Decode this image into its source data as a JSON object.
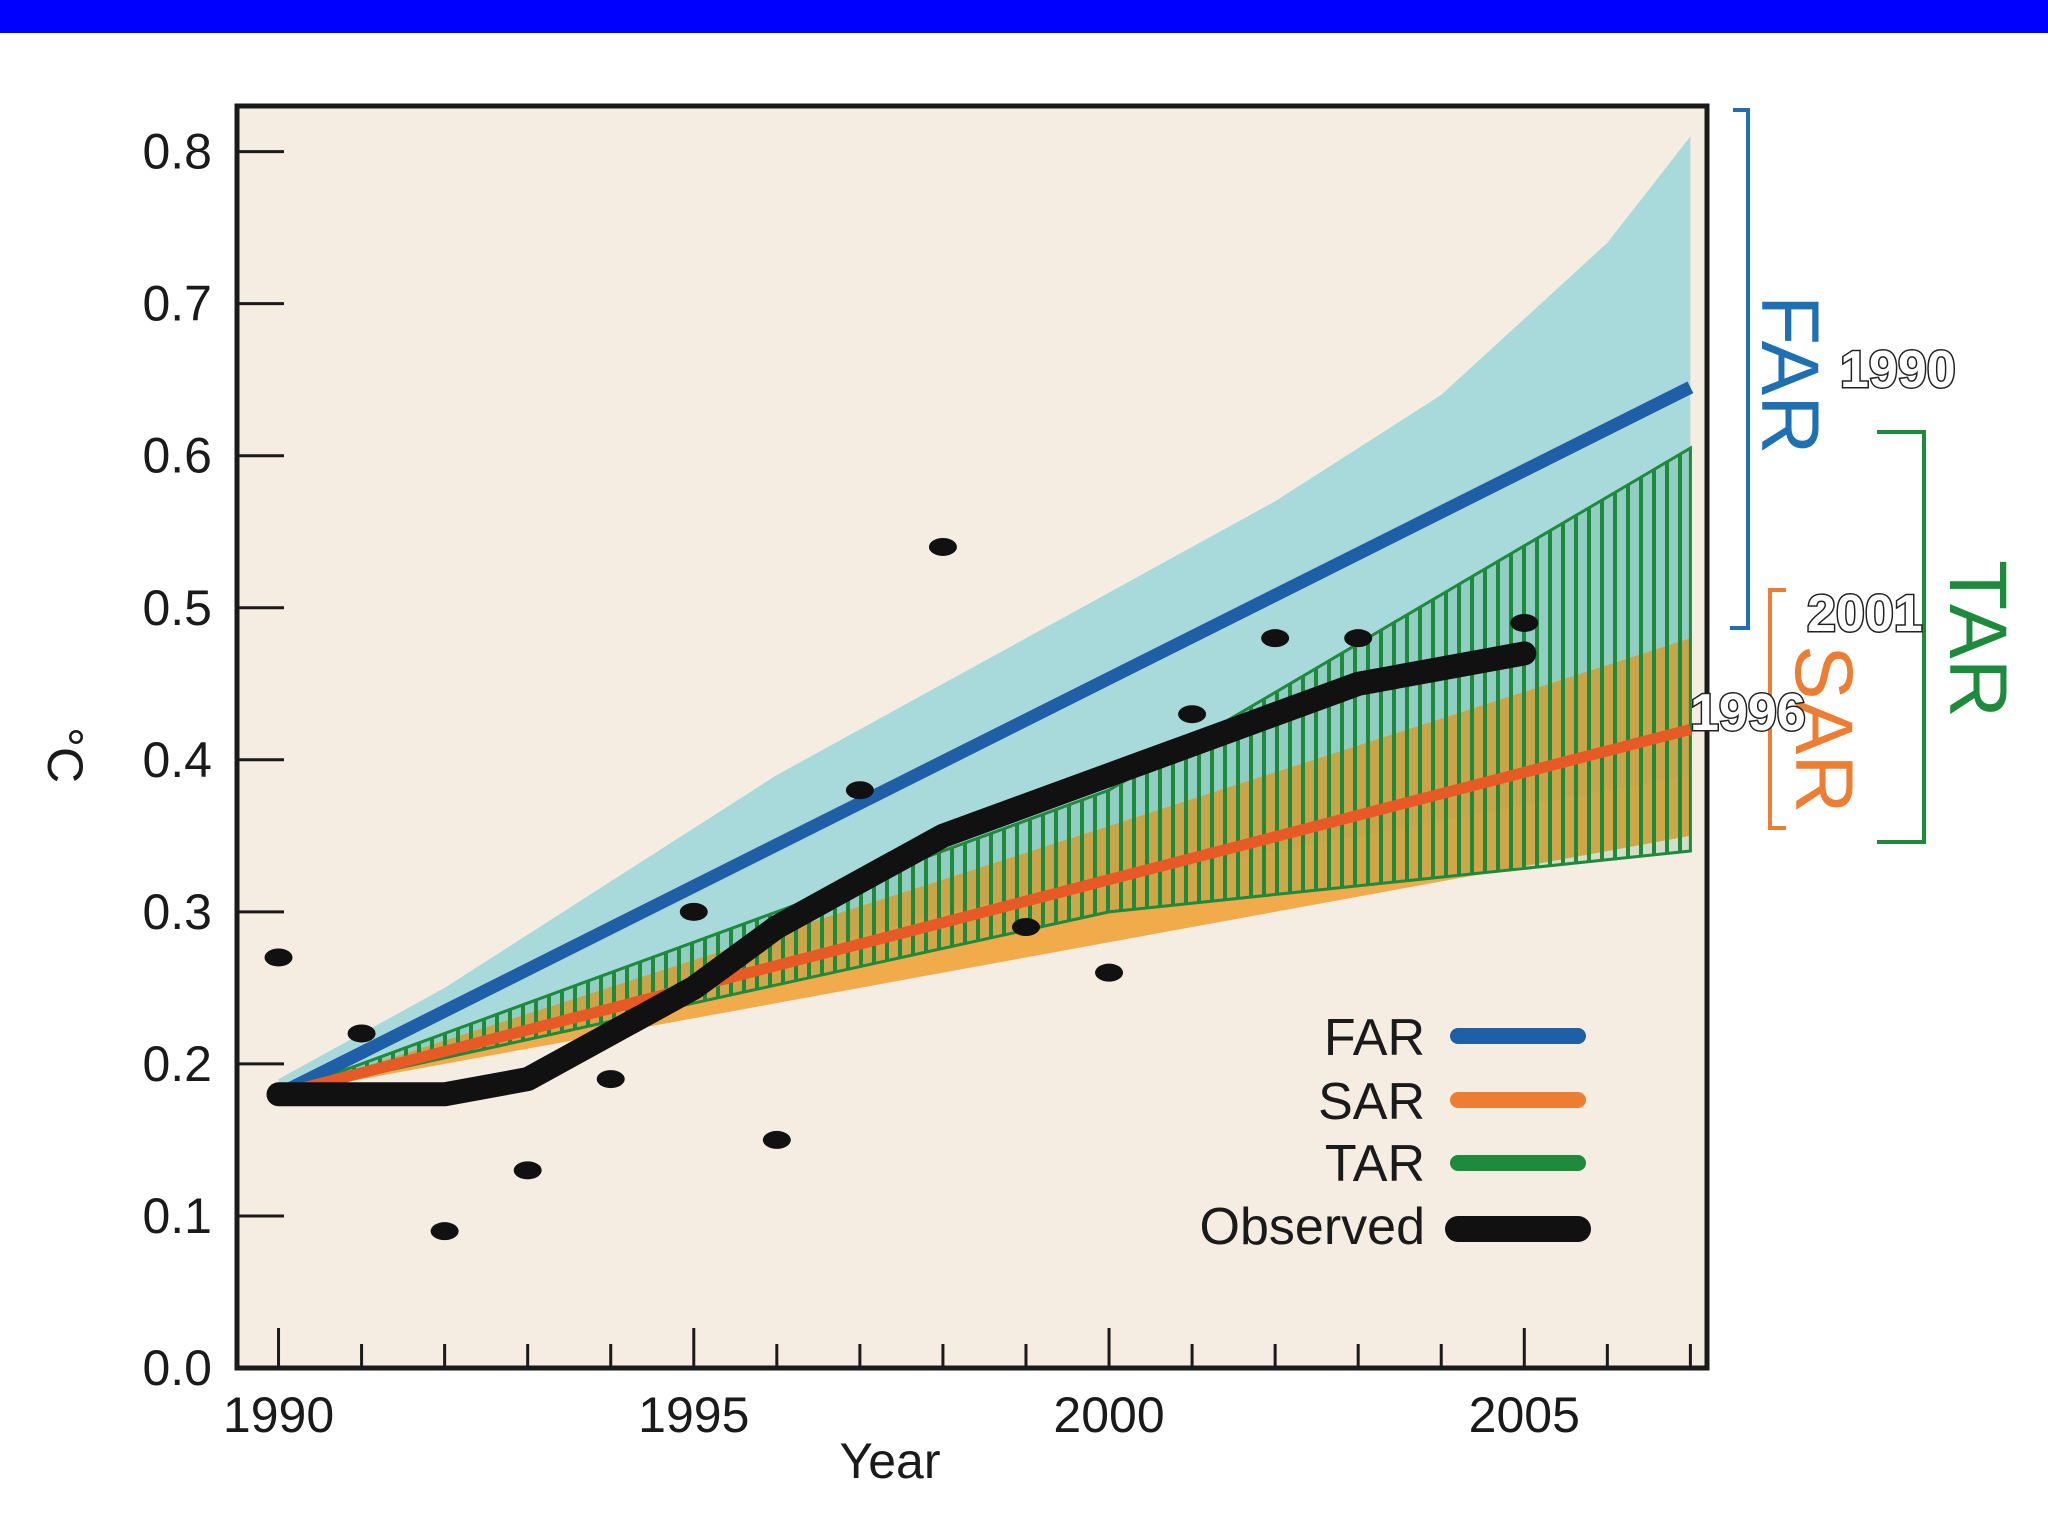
{
  "colors": {
    "topbar": "#0000ff",
    "plot_bg": "#f6ede2",
    "far": "#1f5fa8",
    "far_band": "#a8dadc",
    "sar": "#ec7d32",
    "sar_band": "#f2a33a",
    "tar": "#1e8a3c",
    "observed": "#111111"
  },
  "chart_data": {
    "type": "line",
    "xlabel": "Year",
    "ylabel": "°C",
    "xlim": [
      1989.5,
      2007.2
    ],
    "ylim": [
      0.0,
      0.83
    ],
    "x_ticks": [
      1990,
      1995,
      2000,
      2005
    ],
    "x_tick_labels": [
      "1990",
      "1995",
      "2000",
      "2005"
    ],
    "x_minor_ticks": [
      1990,
      1991,
      1992,
      1993,
      1994,
      1995,
      1996,
      1997,
      1998,
      1999,
      2000,
      2001,
      2002,
      2003,
      2004,
      2005,
      2006,
      2007
    ],
    "y_ticks": [
      0.0,
      0.1,
      0.2,
      0.3,
      0.4,
      0.5,
      0.6,
      0.7,
      0.8
    ],
    "y_tick_labels": [
      "0.0",
      "0.1",
      "0.2",
      "0.3",
      "0.4",
      "0.5",
      "0.6",
      "0.7",
      "0.8"
    ],
    "grid": false,
    "legend_position": "bottom-right",
    "series": [
      {
        "name": "FAR",
        "x": [
          1990,
          2007
        ],
        "values": [
          0.18,
          0.645
        ],
        "band_x": [
          1990,
          1992,
          1994,
          1996,
          1998,
          2000,
          2002,
          2004,
          2006,
          2007
        ],
        "band_upper": [
          0.19,
          0.25,
          0.32,
          0.39,
          0.45,
          0.51,
          0.57,
          0.64,
          0.74,
          0.81
        ],
        "band_lower": [
          0.18,
          0.205,
          0.24,
          0.27,
          0.3,
          0.32,
          0.34,
          0.36,
          0.38,
          0.39
        ]
      },
      {
        "name": "SAR",
        "x": [
          1990,
          2007
        ],
        "values": [
          0.18,
          0.42
        ],
        "band_x": [
          1990,
          2007
        ],
        "band_upper": [
          0.18,
          0.48
        ],
        "band_lower": [
          0.18,
          0.35
        ]
      },
      {
        "name": "TAR",
        "x": [
          1990,
          2007
        ],
        "values": [
          0.18,
          0.42
        ],
        "band_x": [
          1990,
          2000,
          2007
        ],
        "band_upper": [
          0.18,
          0.38,
          0.605
        ],
        "band_lower": [
          0.18,
          0.3,
          0.34
        ]
      },
      {
        "name": "Observed",
        "x": [
          1990,
          1992,
          1993,
          1994,
          1995,
          1996,
          1997,
          1998,
          2000,
          2001,
          2002,
          2003,
          2005
        ],
        "values": [
          0.18,
          0.18,
          0.19,
          0.22,
          0.25,
          0.29,
          0.32,
          0.35,
          0.39,
          0.41,
          0.43,
          0.45,
          0.47
        ],
        "points_x": [
          1990,
          1991,
          1992,
          1993,
          1994,
          1995,
          1996,
          1997,
          1998,
          1999,
          2000,
          2001,
          2002,
          2003,
          2005
        ],
        "points_y": [
          0.27,
          0.22,
          0.09,
          0.13,
          0.19,
          0.3,
          0.15,
          0.38,
          0.54,
          0.29,
          0.26,
          0.43,
          0.48,
          0.48,
          0.49
        ]
      }
    ],
    "legend": [
      "FAR",
      "SAR",
      "TAR",
      "Observed"
    ],
    "brackets": [
      {
        "name": "FAR",
        "year": "1990",
        "range": [
          0.5,
          0.82
        ]
      },
      {
        "name": "SAR",
        "year": "1996",
        "range": [
          0.35,
          0.5
        ]
      },
      {
        "name": "TAR",
        "year": "2001",
        "range": [
          0.34,
          0.605
        ]
      }
    ]
  }
}
